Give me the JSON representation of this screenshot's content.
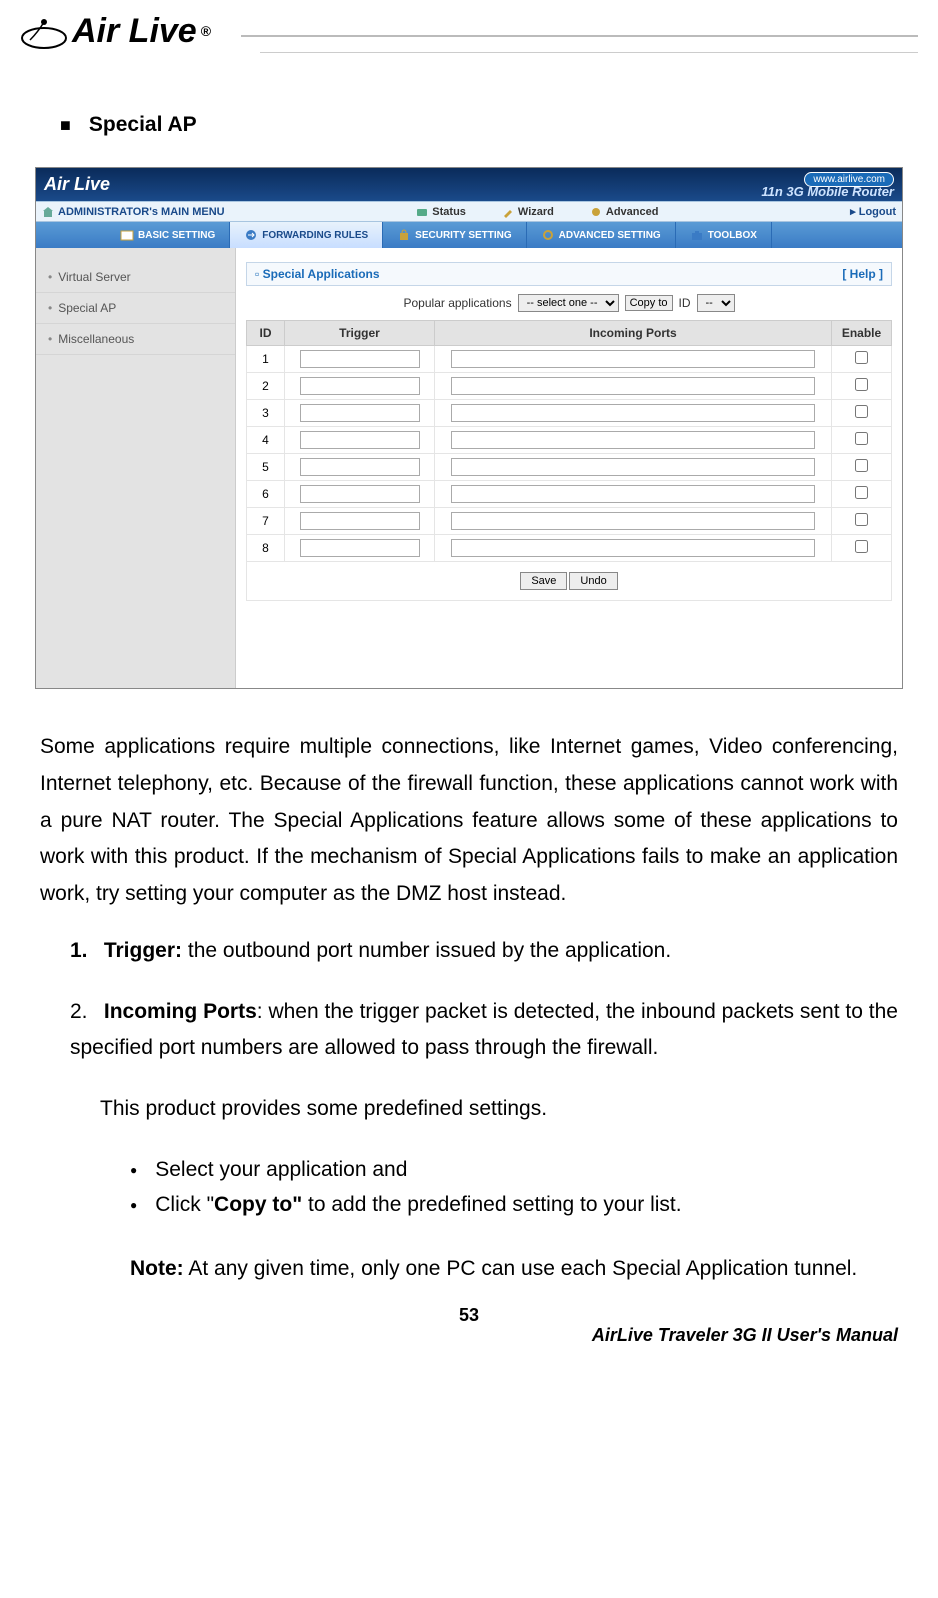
{
  "logo_text": "Air Live",
  "logo_r": "®",
  "section_title": "Special AP",
  "screenshot": {
    "logo": "Air Live",
    "url_badge": "www.airlive.com",
    "subtitle": "11n 3G Mobile Router",
    "admin_label": "ADMINISTRATOR's MAIN MENU",
    "nav": {
      "status": "Status",
      "wizard": "Wizard",
      "advanced": "Advanced",
      "logout": "▸ Logout"
    },
    "tabs": {
      "basic": "BASIC SETTING",
      "forwarding": "FORWARDING RULES",
      "security": "SECURITY SETTING",
      "adv": "ADVANCED SETTING",
      "toolbox": "TOOLBOX"
    },
    "sidebar": {
      "vs": "Virtual Server",
      "sp": "Special AP",
      "misc": "Miscellaneous"
    },
    "panel_title": "Special Applications",
    "help": "[ Help ]",
    "popular_label": "Popular applications",
    "popular_select": "-- select one --",
    "copy_btn": "Copy to",
    "id_label": "ID",
    "id_select": "--",
    "table": {
      "col_id": "ID",
      "col_trigger": "Trigger",
      "col_incoming": "Incoming Ports",
      "col_enable": "Enable",
      "row_ids": [
        "1",
        "2",
        "3",
        "4",
        "5",
        "6",
        "7",
        "8"
      ]
    },
    "save_btn": "Save",
    "undo_btn": "Undo"
  },
  "para1": "Some applications require multiple connections, like Internet games, Video conferencing, Internet telephony, etc. Because of the firewall function, these applications cannot work with a pure NAT router. The Special Applications feature allows some of these applications to work with this product. If the mechanism of Special Applications fails to make an application work, try setting your computer as the DMZ host instead.",
  "item1_num": "1.",
  "item1_bold": "Trigger:",
  "item1_text": " the outbound port number issued by the application.",
  "item2_num": "2.",
  "item2_bold": "Incoming Ports",
  "item2_text": ": when the trigger packet is detected, the inbound packets sent to the specified port numbers are allowed to pass through the firewall.",
  "predef": "This product provides some predefined settings.",
  "bullet1": "Select your application and",
  "bullet2_pre": "Click \"",
  "bullet2_bold": "Copy to\"",
  "bullet2_post": " to add the predefined setting to your list.",
  "note_bold": "Note:",
  "note_text": " At any given time, only one PC can use each Special Application tunnel.",
  "page_number": "53",
  "footer_title": "AirLive Traveler 3G II User's Manual"
}
